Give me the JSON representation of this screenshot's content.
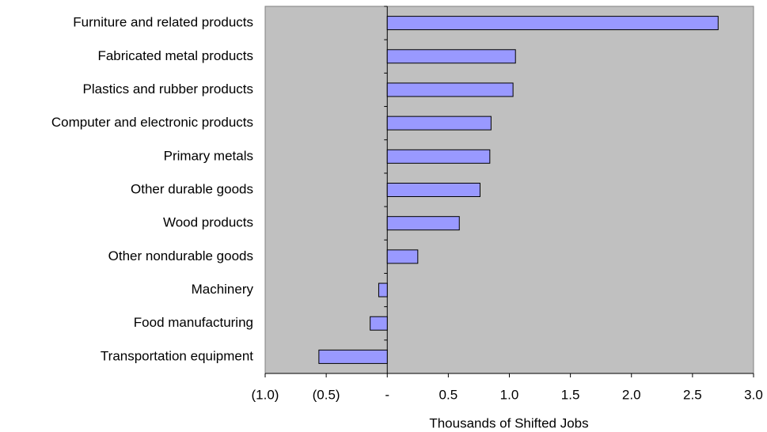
{
  "chart_data": {
    "type": "hbar",
    "xlabel": "Thousands of Shifted Jobs",
    "categories": [
      "Furniture and related products",
      "Fabricated metal products",
      "Plastics and rubber products",
      "Computer and electronic products",
      "Primary metals",
      "Other durable goods",
      "Wood products",
      "Other nondurable goods",
      "Machinery",
      "Food manufacturing",
      "Transportation equipment"
    ],
    "values": [
      2.71,
      1.05,
      1.03,
      0.85,
      0.84,
      0.76,
      0.59,
      0.25,
      -0.07,
      -0.14,
      -0.56
    ],
    "color": "#9999ff",
    "xlim": [
      -1.0,
      3.0
    ],
    "xticks": [
      {
        "value": -1.0,
        "label": "(1.0)"
      },
      {
        "value": -0.5,
        "label": "(0.5)"
      },
      {
        "value": 0,
        "label": "-"
      },
      0.5,
      {
        "value": 1.0,
        "label": "1.0"
      },
      1.5,
      {
        "value": 2.0,
        "label": "2.0"
      },
      2.5,
      {
        "value": 3.0,
        "label": "3.0"
      }
    ]
  }
}
